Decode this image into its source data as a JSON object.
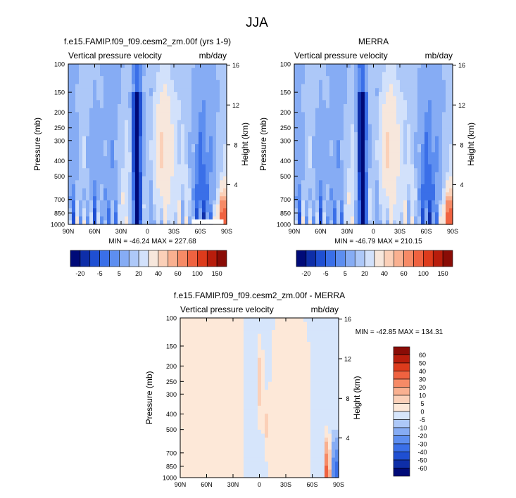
{
  "chart_data": {
    "type": "heatmap",
    "title": "JJA",
    "panels": [
      {
        "id": "model",
        "title": "f.e15.FAMIP.f09_f09.cesm2_zm.00f (yrs 1-9)",
        "left_label": "Vertical pressure velocity",
        "right_label": "mb/day",
        "ylabel": "Pressure (mb)",
        "y2label": "Height (km)",
        "x_ticks": [
          "90N",
          "60N",
          "30N",
          "0",
          "30S",
          "60S",
          "90S"
        ],
        "x_values": [
          90,
          60,
          30,
          0,
          -30,
          -60,
          -90
        ],
        "y_ticks": [
          "100",
          "150",
          "200",
          "250",
          "300",
          "400",
          "500",
          "700",
          "850",
          "1000"
        ],
        "y_values": [
          100,
          150,
          200,
          250,
          300,
          400,
          500,
          700,
          850,
          1000
        ],
        "y2_ticks": [
          "16",
          "12",
          "8",
          "4"
        ],
        "y2_values": [
          16,
          12,
          8,
          4
        ],
        "stats": "MIN = -46.24  MAX = 227.68",
        "min": -46.24,
        "max": 227.68
      },
      {
        "id": "obs",
        "title": "MERRA",
        "left_label": "Vertical pressure velocity",
        "right_label": "mb/day",
        "ylabel": "Pressure (mb)",
        "y2label": "Height (km)",
        "x_ticks": [
          "90N",
          "60N",
          "30N",
          "0",
          "30S",
          "60S",
          "90S"
        ],
        "x_values": [
          90,
          60,
          30,
          0,
          -30,
          -60,
          -90
        ],
        "y_ticks": [
          "100",
          "150",
          "200",
          "250",
          "300",
          "400",
          "500",
          "700",
          "850",
          "1000"
        ],
        "y_values": [
          100,
          150,
          200,
          250,
          300,
          400,
          500,
          700,
          850,
          1000
        ],
        "y2_ticks": [
          "16",
          "12",
          "8",
          "4"
        ],
        "y2_values": [
          16,
          12,
          8,
          4
        ],
        "stats": "MIN = -46.79  MAX = 210.15",
        "min": -46.79,
        "max": 210.15
      },
      {
        "id": "diff",
        "title": "f.e15.FAMIP.f09_f09.cesm2_zm.00f - MERRA",
        "left_label": "Vertical pressure velocity",
        "right_label": "mb/day",
        "ylabel": "Pressure (mb)",
        "y2label": "Height (km)",
        "x_ticks": [
          "90N",
          "60N",
          "30N",
          "0",
          "30S",
          "60S",
          "90S"
        ],
        "x_values": [
          90,
          60,
          30,
          0,
          -30,
          -60,
          -90
        ],
        "y_ticks": [
          "100",
          "150",
          "200",
          "250",
          "300",
          "400",
          "500",
          "700",
          "850",
          "1000"
        ],
        "y_values": [
          100,
          150,
          200,
          250,
          300,
          400,
          500,
          700,
          850,
          1000
        ],
        "y2_ticks": [
          "16",
          "12",
          "8",
          "4"
        ],
        "y2_values": [
          16,
          12,
          8,
          4
        ],
        "stats": "MIN = -42.85  MAX = 134.31",
        "min": -42.85,
        "max": 134.31
      }
    ],
    "colorbar_main": {
      "labels": [
        "-20",
        "-5",
        "5",
        "20",
        "40",
        "60",
        "100",
        "150"
      ],
      "colors": [
        "#000a78",
        "#0e2ea8",
        "#1f4fd2",
        "#3a6fe8",
        "#5d8ef0",
        "#86acf4",
        "#adc8f8",
        "#d2e1fb",
        "#f7e7dc",
        "#fbd0b8",
        "#f9b090",
        "#f68a66",
        "#ef6240",
        "#dd3b1c",
        "#b81d0c",
        "#8a0c06"
      ]
    },
    "colorbar_diff": {
      "labels": [
        "60",
        "50",
        "40",
        "30",
        "20",
        "10",
        "5",
        "0",
        "-5",
        "-10",
        "-20",
        "-30",
        "-40",
        "-50",
        "-60"
      ],
      "colors": [
        "#8a0c06",
        "#b81d0c",
        "#dd3b1c",
        "#ef6240",
        "#f68a66",
        "#f9b090",
        "#fbd0b8",
        "#fde8d8",
        "#d6e5fb",
        "#adc8f8",
        "#86acf4",
        "#5d8ef0",
        "#3a6fe8",
        "#1f4fd2",
        "#0e2ea8",
        "#000a78"
      ]
    }
  }
}
